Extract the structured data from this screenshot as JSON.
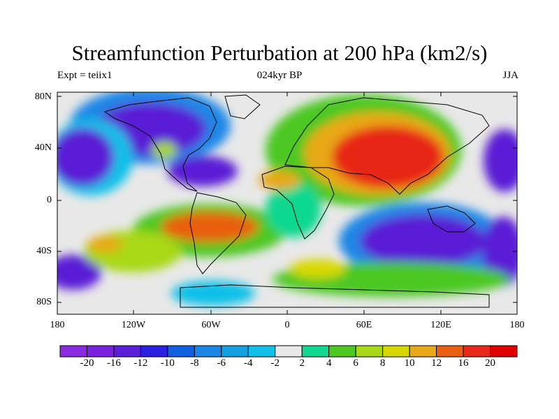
{
  "title": "Streamfunction Perturbation at 200 hPa (km2/s)",
  "left_subtitle": "Expt = teiix1",
  "center_subtitle": "024kyr BP",
  "right_subtitle": "JJA",
  "lat_ticks": [
    "80N",
    "40N",
    "0",
    "40S",
    "80S"
  ],
  "lon_ticks": [
    "180",
    "120W",
    "60W",
    "0",
    "60E",
    "120E",
    "180"
  ],
  "colorbar": {
    "colors": [
      "#8a2be2",
      "#7b1fe0",
      "#5a1fd6",
      "#2a22e0",
      "#1060e0",
      "#1a86e6",
      "#14a0e0",
      "#10c0e8",
      "#e8e8e8",
      "#10d890",
      "#4cc820",
      "#a8d818",
      "#d8d800",
      "#e8a818",
      "#e86010",
      "#e82818",
      "#e00000"
    ],
    "labels": [
      "-20",
      "-16",
      "-12",
      "-10",
      "-8",
      "-6",
      "-4",
      "-2",
      "2",
      "4",
      "6",
      "8",
      "10",
      "12",
      "16",
      "20"
    ]
  }
}
